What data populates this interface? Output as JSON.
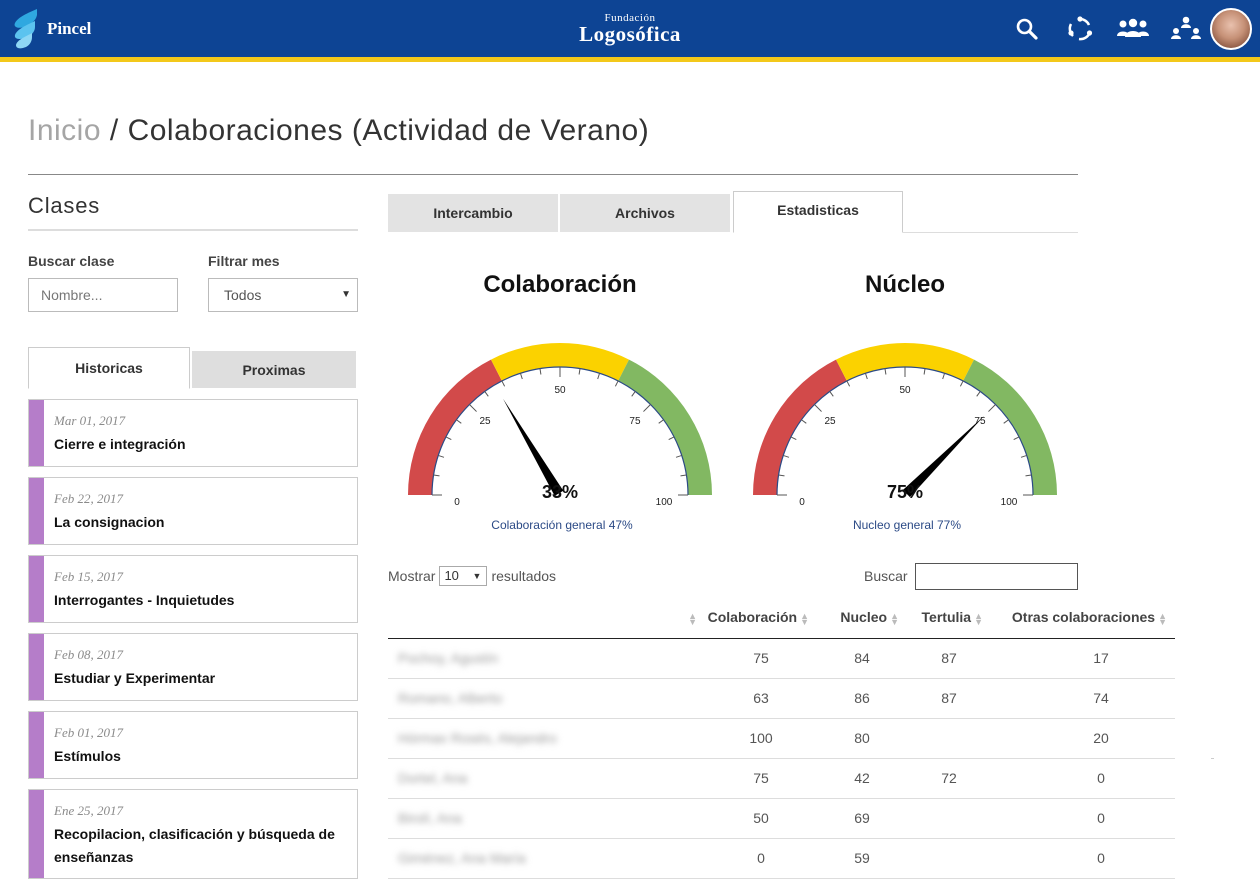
{
  "header": {
    "brand": "Pincel",
    "center_logo_small": "Fundación",
    "center_logo_big": "Logosófica",
    "icons": [
      "search-icon",
      "sync-icon",
      "group-icon",
      "hierarchy-icon"
    ],
    "bar_color": "#0d4494",
    "stripe_color": "#f3c81a"
  },
  "breadcrumb": {
    "home": "Inicio",
    "separator": " / ",
    "current": "Colaboraciones (Actividad de Verano)"
  },
  "sidebar": {
    "title": "Clases",
    "search_label": "Buscar clase",
    "search_placeholder": "Nombre...",
    "filter_label": "Filtrar mes",
    "filter_value": "Todos",
    "tabs": [
      {
        "label": "Historicas",
        "active": true
      },
      {
        "label": "Proximas",
        "active": false
      }
    ],
    "classes": [
      {
        "date": "Mar 01, 2017",
        "title": "Cierre e integración"
      },
      {
        "date": "Feb 22, 2017",
        "title": "La consignacion"
      },
      {
        "date": "Feb 15, 2017",
        "title": "Interrogantes - Inquietudes"
      },
      {
        "date": "Feb 08, 2017",
        "title": "Estudiar y Experimentar"
      },
      {
        "date": "Feb 01, 2017",
        "title": "Estímulos"
      },
      {
        "date": "Ene 25, 2017",
        "title": "Recopilacion, clasificación y búsqueda de enseñanzas"
      }
    ],
    "accent_color": "#b57dc9"
  },
  "main": {
    "tabs": [
      {
        "label": "Intercambio",
        "active": false
      },
      {
        "label": "Archivos",
        "active": false
      },
      {
        "label": "Estadisticas",
        "active": true
      }
    ],
    "gauges": [
      {
        "title": "Colaboración",
        "value": 33,
        "value_label": "33%",
        "caption": "Colaboración general 47%"
      },
      {
        "title": "Núcleo",
        "value": 75,
        "value_label": "75%",
        "caption": "Nucleo general 77%"
      }
    ],
    "gauge_ticks": [
      "0",
      "25",
      "50",
      "75",
      "100"
    ],
    "gauge_bands": [
      {
        "from": 0,
        "to": 35,
        "color": "#d24a4a"
      },
      {
        "from": 35,
        "to": 65,
        "color": "#fbd200"
      },
      {
        "from": 65,
        "to": 100,
        "color": "#82b862"
      }
    ],
    "table": {
      "show_label": "Mostrar",
      "page_length": "10",
      "results_label": "resultados",
      "search_label": "Buscar",
      "columns": [
        "",
        "Colaboración",
        "Nucleo",
        "Tertulia",
        "Otras colaboraciones"
      ],
      "rows": [
        {
          "name": "Pochoy, Agustín",
          "colaboracion": "75",
          "nucleo": "84",
          "tertulia": "87",
          "otras": "17"
        },
        {
          "name": "Romano, Alberto",
          "colaboracion": "63",
          "nucleo": "86",
          "tertulia": "87",
          "otras": "74"
        },
        {
          "name": "Hórmax Rosés, Alejandro",
          "colaboracion": "100",
          "nucleo": "80",
          "tertulia": "",
          "otras": "20"
        },
        {
          "name": "Dortel, Ana",
          "colaboracion": "75",
          "nucleo": "42",
          "tertulia": "72",
          "otras": "0"
        },
        {
          "name": "Birolí, Ana",
          "colaboracion": "50",
          "nucleo": "69",
          "tertulia": "",
          "otras": "0"
        },
        {
          "name": "Giménez, Ana María",
          "colaboracion": "0",
          "nucleo": "59",
          "tertulia": "",
          "otras": "0"
        }
      ]
    }
  }
}
